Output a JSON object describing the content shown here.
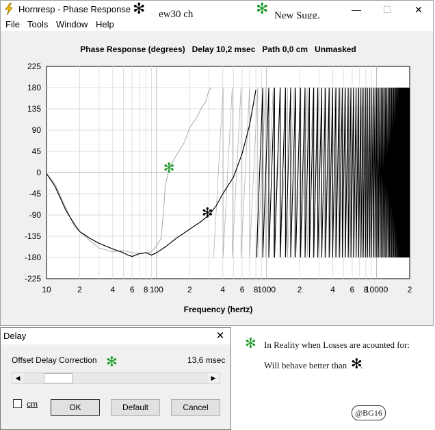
{
  "window": {
    "app_title": "Hornresp - Phase Response",
    "title_note_1": "ew30 ch",
    "title_note_2": "New Sugg.",
    "minimize_label": "—",
    "maximize_label": "☐",
    "close_label": "✕"
  },
  "menu": [
    "File",
    "Tools",
    "Window",
    "Help"
  ],
  "colors": {
    "accent_star": "#1e9a2a",
    "black_star": "#000000",
    "trace_black": "#000000",
    "trace_gray": "#a8a8a8"
  },
  "chart_data": {
    "type": "line",
    "header": "Phase Response (degrees)   Delay 10,2 msec   Path 0,0 cm   Unmasked",
    "xlabel": "Frequency (hertz)",
    "x_scale": "log",
    "xlim": [
      10,
      20000
    ],
    "ylim": [
      -225,
      225
    ],
    "y_ticks": [
      225,
      180,
      135,
      90,
      45,
      0,
      -45,
      -90,
      -135,
      -180,
      -225
    ],
    "x_tick_values": [
      10,
      20,
      40,
      60,
      80,
      100,
      200,
      400,
      600,
      800,
      1000,
      2000,
      4000,
      6000,
      8000,
      10000,
      20000
    ],
    "x_tick_labels": [
      "10",
      "2",
      "4",
      "6",
      "8",
      "100",
      "2",
      "4",
      "6",
      "8",
      "1000",
      "2",
      "4",
      "6",
      "8",
      "10000",
      "2"
    ],
    "series": [
      {
        "color": "#a8a8a8",
        "points": [
          [
            10,
            -2
          ],
          [
            12,
            -25
          ],
          [
            15,
            -75
          ],
          [
            18,
            -115
          ],
          [
            20,
            -125
          ],
          [
            25,
            -145
          ],
          [
            30,
            -160
          ],
          [
            40,
            -168
          ],
          [
            50,
            -165
          ],
          [
            60,
            -170
          ],
          [
            70,
            -172
          ],
          [
            80,
            -170
          ],
          [
            90,
            -168
          ],
          [
            100,
            -155
          ],
          [
            110,
            -140
          ],
          [
            115,
            -90
          ],
          [
            120,
            -30
          ],
          [
            130,
            10
          ],
          [
            150,
            35
          ],
          [
            180,
            65
          ],
          [
            200,
            95
          ],
          [
            230,
            115
          ],
          [
            260,
            140
          ],
          [
            280,
            150
          ],
          [
            300,
            175
          ],
          [
            320,
            180
          ]
        ]
      },
      {
        "color": "#000000",
        "points": [
          [
            10,
            -2
          ],
          [
            12,
            -30
          ],
          [
            15,
            -80
          ],
          [
            18,
            -110
          ],
          [
            20,
            -125
          ],
          [
            25,
            -140
          ],
          [
            30,
            -150
          ],
          [
            40,
            -162
          ],
          [
            50,
            -170
          ],
          [
            55,
            -175
          ],
          [
            60,
            -178
          ],
          [
            70,
            -172
          ],
          [
            80,
            -170
          ],
          [
            90,
            -175
          ],
          [
            100,
            -170
          ],
          [
            120,
            -158
          ],
          [
            150,
            -140
          ],
          [
            200,
            -120
          ],
          [
            250,
            -105
          ],
          [
            300,
            -90
          ],
          [
            350,
            -70
          ],
          [
            400,
            -45
          ],
          [
            500,
            -10
          ],
          [
            600,
            40
          ],
          [
            700,
            100
          ],
          [
            800,
            175
          ]
        ]
      }
    ],
    "annotations": [
      {
        "glyph": "✻",
        "color": "#1e9a2a",
        "x": 130,
        "y": 10
      },
      {
        "glyph": "✻",
        "color": "#000000",
        "x": 290,
        "y": -85
      }
    ]
  },
  "dialog": {
    "title": "Delay",
    "close_label": "✕",
    "offset_label": "Offset Delay Correction",
    "offset_value": "13,6 msec",
    "slider_fraction": 0.13,
    "left_arrow": "◀",
    "right_arrow": "▶",
    "cm_label": "cm",
    "ok_label": "OK",
    "default_label": "Default",
    "cancel_label": "Cancel",
    "star": "✻"
  },
  "note": {
    "star": "✻",
    "line1": "In Reality when Losses are acounted for:",
    "line2": "Will behave better than",
    "line2_end": ".",
    "stamp": "@BG16"
  }
}
